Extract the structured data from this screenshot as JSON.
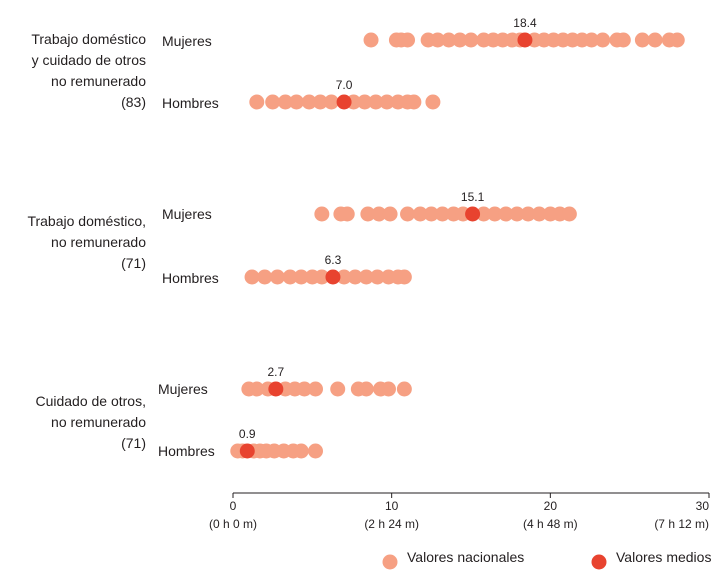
{
  "chart_data": {
    "type": "scatter",
    "title": "",
    "xlabel": "",
    "ylabel": "",
    "xlim": [
      0,
      30
    ],
    "x_ticks": [
      {
        "value": 0,
        "label": "0",
        "sublabel": "(0 h 0 m)"
      },
      {
        "value": 10,
        "label": "10",
        "sublabel": "(2 h 24 m)"
      },
      {
        "value": 20,
        "label": "20",
        "sublabel": "(4 h 48 m)"
      },
      {
        "value": 30,
        "label": "30",
        "sublabel": "(7 h 12 m)"
      }
    ],
    "grid": false,
    "legend_position": "bottom-right",
    "colors": {
      "national": "#f6a083",
      "mean": "#e8432f",
      "axis": "#231f20"
    },
    "legend": {
      "national": "Valores nacionales",
      "mean": "Valores medios"
    },
    "groups": [
      {
        "label": "Trabajo doméstico\ny cuidado de otros\nno remunerado\n(83)",
        "rows": [
          {
            "sex": "Mujeres",
            "mean": 18.4,
            "mean_label": "18.4",
            "values": [
              8.7,
              10.3,
              10.6,
              11.0,
              12.3,
              12.9,
              13.6,
              14.3,
              15.0,
              15.8,
              16.4,
              17.0,
              17.6,
              18.1,
              19.0,
              19.6,
              20.2,
              20.8,
              21.4,
              22.0,
              22.6,
              23.3,
              24.2,
              24.6,
              25.8,
              26.6,
              27.5,
              28.0
            ]
          },
          {
            "sex": "Hombres",
            "mean": 7.0,
            "mean_label": "7.0",
            "values": [
              1.5,
              2.5,
              3.3,
              4.0,
              4.8,
              5.5,
              6.2,
              7.6,
              8.3,
              9.0,
              9.7,
              10.4,
              11.0,
              11.4,
              12.6
            ]
          }
        ]
      },
      {
        "label": "Trabajo doméstico,\nno remunerado\n(71)",
        "rows": [
          {
            "sex": "Mujeres",
            "mean": 15.1,
            "mean_label": "15.1",
            "values": [
              5.6,
              6.8,
              7.2,
              8.5,
              9.2,
              9.9,
              11.0,
              11.8,
              12.5,
              13.2,
              13.9,
              14.5,
              15.8,
              16.5,
              17.2,
              17.9,
              18.6,
              19.3,
              20.0,
              20.6,
              21.2
            ]
          },
          {
            "sex": "Hombres",
            "mean": 6.3,
            "mean_label": "6.3",
            "values": [
              1.2,
              2.0,
              2.8,
              3.6,
              4.3,
              5.0,
              5.6,
              7.0,
              7.7,
              8.4,
              9.1,
              9.8,
              10.4,
              10.8
            ]
          }
        ]
      },
      {
        "label": "Cuidado de otros,\nno remunerado\n(71)",
        "rows": [
          {
            "sex": "Mujeres",
            "mean": 2.7,
            "mean_label": "2.7",
            "values": [
              1.0,
              1.5,
              2.2,
              3.3,
              3.9,
              4.5,
              5.2,
              6.6,
              7.9,
              8.4,
              9.3,
              9.8,
              10.8
            ]
          },
          {
            "sex": "Hombres",
            "mean": 0.9,
            "mean_label": "0.9",
            "values": [
              0.3,
              0.6,
              1.3,
              1.7,
              2.1,
              2.6,
              3.2,
              3.8,
              4.3,
              5.2
            ]
          }
        ]
      }
    ]
  }
}
